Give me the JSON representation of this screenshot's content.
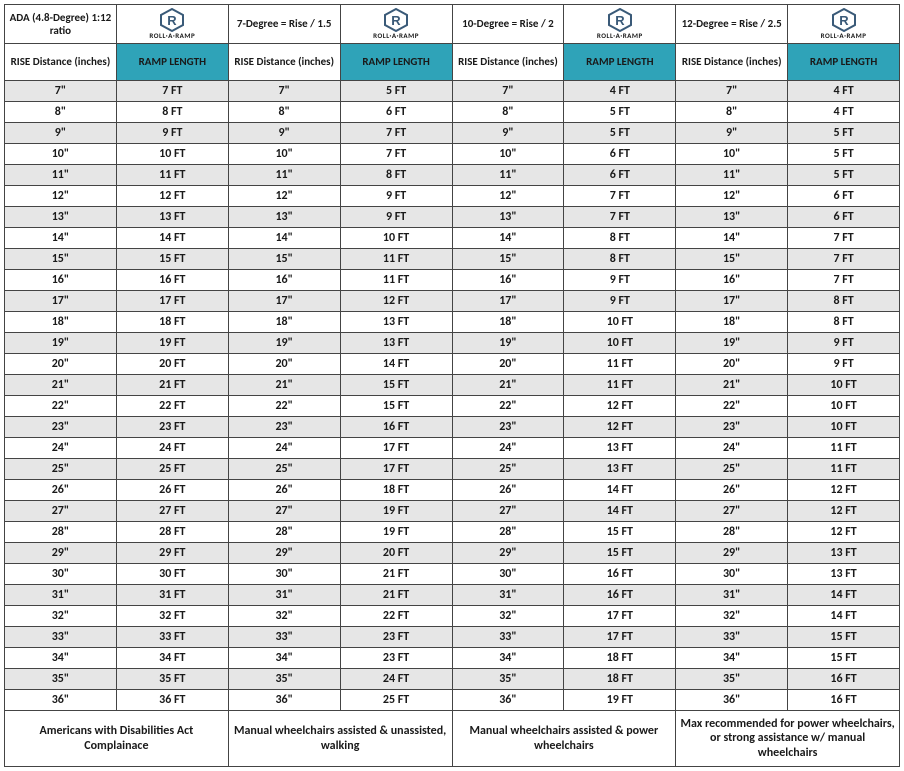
{
  "table": {
    "colors": {
      "ramp_header_bg": "#2fa3b8",
      "rise_header_bg": "#ffffff",
      "row_alt_bg": "#e6e6e6",
      "row_bg": "#ffffff",
      "border": "#444444",
      "text": "#1a1a1a"
    },
    "font": {
      "family": "Calibri, Arial, sans-serif",
      "size_body": 12,
      "size_header": 11
    },
    "column_groups": [
      {
        "top": "ADA (4.8-Degree) 1:12 ratio",
        "logo": true
      },
      {
        "top": "7-Degree = Rise / 1.5",
        "logo": true
      },
      {
        "top": "10-Degree = Rise / 2",
        "logo": true
      },
      {
        "top": "12-Degree = Rise / 2.5",
        "logo": true
      }
    ],
    "logo_text": "ROLL·A·RAMP",
    "subheader": {
      "rise": "RISE Distance (inches)",
      "ramp": "RAMP LENGTH"
    },
    "rows": [
      {
        "rise": "7\"",
        "ramps": [
          "7 FT",
          "5 FT",
          "4 FT",
          "4 FT"
        ]
      },
      {
        "rise": "8\"",
        "ramps": [
          "8 FT",
          "6 FT",
          "5 FT",
          "4 FT"
        ]
      },
      {
        "rise": "9\"",
        "ramps": [
          "9 FT",
          "7 FT",
          "5 FT",
          "5 FT"
        ]
      },
      {
        "rise": "10\"",
        "ramps": [
          "10 FT",
          "7 FT",
          "6 FT",
          "5 FT"
        ]
      },
      {
        "rise": "11\"",
        "ramps": [
          "11 FT",
          "8 FT",
          "6 FT",
          "5 FT"
        ]
      },
      {
        "rise": "12\"",
        "ramps": [
          "12 FT",
          "9 FT",
          "7 FT",
          "6 FT"
        ]
      },
      {
        "rise": "13\"",
        "ramps": [
          "13 FT",
          "9 FT",
          "7 FT",
          "6 FT"
        ]
      },
      {
        "rise": "14\"",
        "ramps": [
          "14 FT",
          "10 FT",
          "8 FT",
          "7 FT"
        ]
      },
      {
        "rise": "15\"",
        "ramps": [
          "15 FT",
          "11 FT",
          "8 FT",
          "7 FT"
        ]
      },
      {
        "rise": "16\"",
        "ramps": [
          "16 FT",
          "11 FT",
          "9 FT",
          "7 FT"
        ]
      },
      {
        "rise": "17\"",
        "ramps": [
          "17 FT",
          "12 FT",
          "9 FT",
          "8 FT"
        ]
      },
      {
        "rise": "18\"",
        "ramps": [
          "18 FT",
          "13 FT",
          "10 FT",
          "8 FT"
        ]
      },
      {
        "rise": "19\"",
        "ramps": [
          "19 FT",
          "13 FT",
          "10 FT",
          "9 FT"
        ]
      },
      {
        "rise": "20\"",
        "ramps": [
          "20 FT",
          "14 FT",
          "11 FT",
          "9 FT"
        ]
      },
      {
        "rise": "21\"",
        "ramps": [
          "21 FT",
          "15 FT",
          "11 FT",
          "10 FT"
        ]
      },
      {
        "rise": "22\"",
        "ramps": [
          "22 FT",
          "15 FT",
          "12 FT",
          "10 FT"
        ]
      },
      {
        "rise": "23\"",
        "ramps": [
          "23 FT",
          "16 FT",
          "12 FT",
          "10 FT"
        ]
      },
      {
        "rise": "24\"",
        "ramps": [
          "24 FT",
          "17 FT",
          "13 FT",
          "11 FT"
        ]
      },
      {
        "rise": "25\"",
        "ramps": [
          "25 FT",
          "17 FT",
          "13 FT",
          "11 FT"
        ]
      },
      {
        "rise": "26\"",
        "ramps": [
          "26 FT",
          "18 FT",
          "14 FT",
          "12 FT"
        ]
      },
      {
        "rise": "27\"",
        "ramps": [
          "27 FT",
          "19 FT",
          "14 FT",
          "12 FT"
        ]
      },
      {
        "rise": "28\"",
        "ramps": [
          "28 FT",
          "19 FT",
          "15 FT",
          "12 FT"
        ]
      },
      {
        "rise": "29\"",
        "ramps": [
          "29 FT",
          "20 FT",
          "15 FT",
          "13 FT"
        ]
      },
      {
        "rise": "30\"",
        "ramps": [
          "30 FT",
          "21 FT",
          "16 FT",
          "13 FT"
        ]
      },
      {
        "rise": "31\"",
        "ramps": [
          "31 FT",
          "21 FT",
          "16 FT",
          "14 FT"
        ]
      },
      {
        "rise": "32\"",
        "ramps": [
          "32 FT",
          "22 FT",
          "17 FT",
          "14 FT"
        ]
      },
      {
        "rise": "33\"",
        "ramps": [
          "33 FT",
          "23 FT",
          "17 FT",
          "15 FT"
        ]
      },
      {
        "rise": "34\"",
        "ramps": [
          "34 FT",
          "23 FT",
          "18 FT",
          "15 FT"
        ]
      },
      {
        "rise": "35\"",
        "ramps": [
          "35 FT",
          "24 FT",
          "18 FT",
          "16 FT"
        ]
      },
      {
        "rise": "36\"",
        "ramps": [
          "36 FT",
          "25 FT",
          "19 FT",
          "16 FT"
        ]
      }
    ],
    "footers": [
      "Americans with Disabilities Act Complainace",
      "Manual wheelchairs assisted & unassisted, walking",
      "Manual wheelchairs assisted & power wheelchairs",
      "Max recommended for power wheelchairs, or strong assistance w/ manual wheelchairs"
    ]
  }
}
